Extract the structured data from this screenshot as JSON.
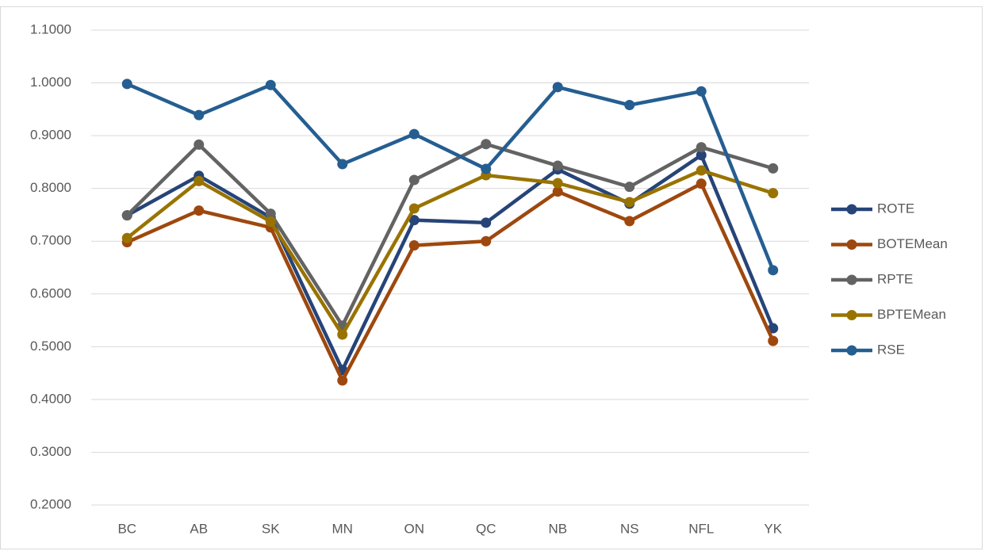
{
  "chart_data": {
    "type": "line",
    "categories": [
      "BC",
      "AB",
      "SK",
      "MN",
      "ON",
      "QC",
      "NB",
      "NS",
      "NFL",
      "YK"
    ],
    "series": [
      {
        "name": "ROTE",
        "color": "#264478",
        "values": [
          0.749,
          0.824,
          0.745,
          0.456,
          0.74,
          0.735,
          0.836,
          0.771,
          0.863,
          0.535
        ]
      },
      {
        "name": "BOTEMean",
        "color": "#9e480e",
        "values": [
          0.698,
          0.758,
          0.726,
          0.436,
          0.692,
          0.7,
          0.794,
          0.738,
          0.809,
          0.511
        ]
      },
      {
        "name": "RPTE",
        "color": "#636363",
        "values": [
          0.749,
          0.883,
          0.752,
          0.54,
          0.816,
          0.884,
          0.843,
          0.803,
          0.878,
          0.838
        ]
      },
      {
        "name": "BPTEMean",
        "color": "#997300",
        "values": [
          0.706,
          0.814,
          0.737,
          0.523,
          0.762,
          0.825,
          0.81,
          0.774,
          0.834,
          0.791
        ]
      },
      {
        "name": "RSE",
        "color": "#255e91",
        "values": [
          0.998,
          0.939,
          0.996,
          0.846,
          0.903,
          0.837,
          0.992,
          0.958,
          0.984,
          0.645
        ]
      }
    ],
    "ylim": [
      0.2,
      1.1
    ],
    "yticks": [
      {
        "value": 0.2,
        "label": "0.2000"
      },
      {
        "value": 0.3,
        "label": "0.3000"
      },
      {
        "value": 0.4,
        "label": "0.4000"
      },
      {
        "value": 0.5,
        "label": "0.5000"
      },
      {
        "value": 0.6,
        "label": "0.6000"
      },
      {
        "value": 0.7,
        "label": "0.7000"
      },
      {
        "value": 0.8,
        "label": "0.8000"
      },
      {
        "value": 0.9,
        "label": "0.9000"
      },
      {
        "value": 1.0,
        "label": "1.0000"
      },
      {
        "value": 1.1,
        "label": "1.1000"
      }
    ],
    "grid": true,
    "legend": "right"
  }
}
